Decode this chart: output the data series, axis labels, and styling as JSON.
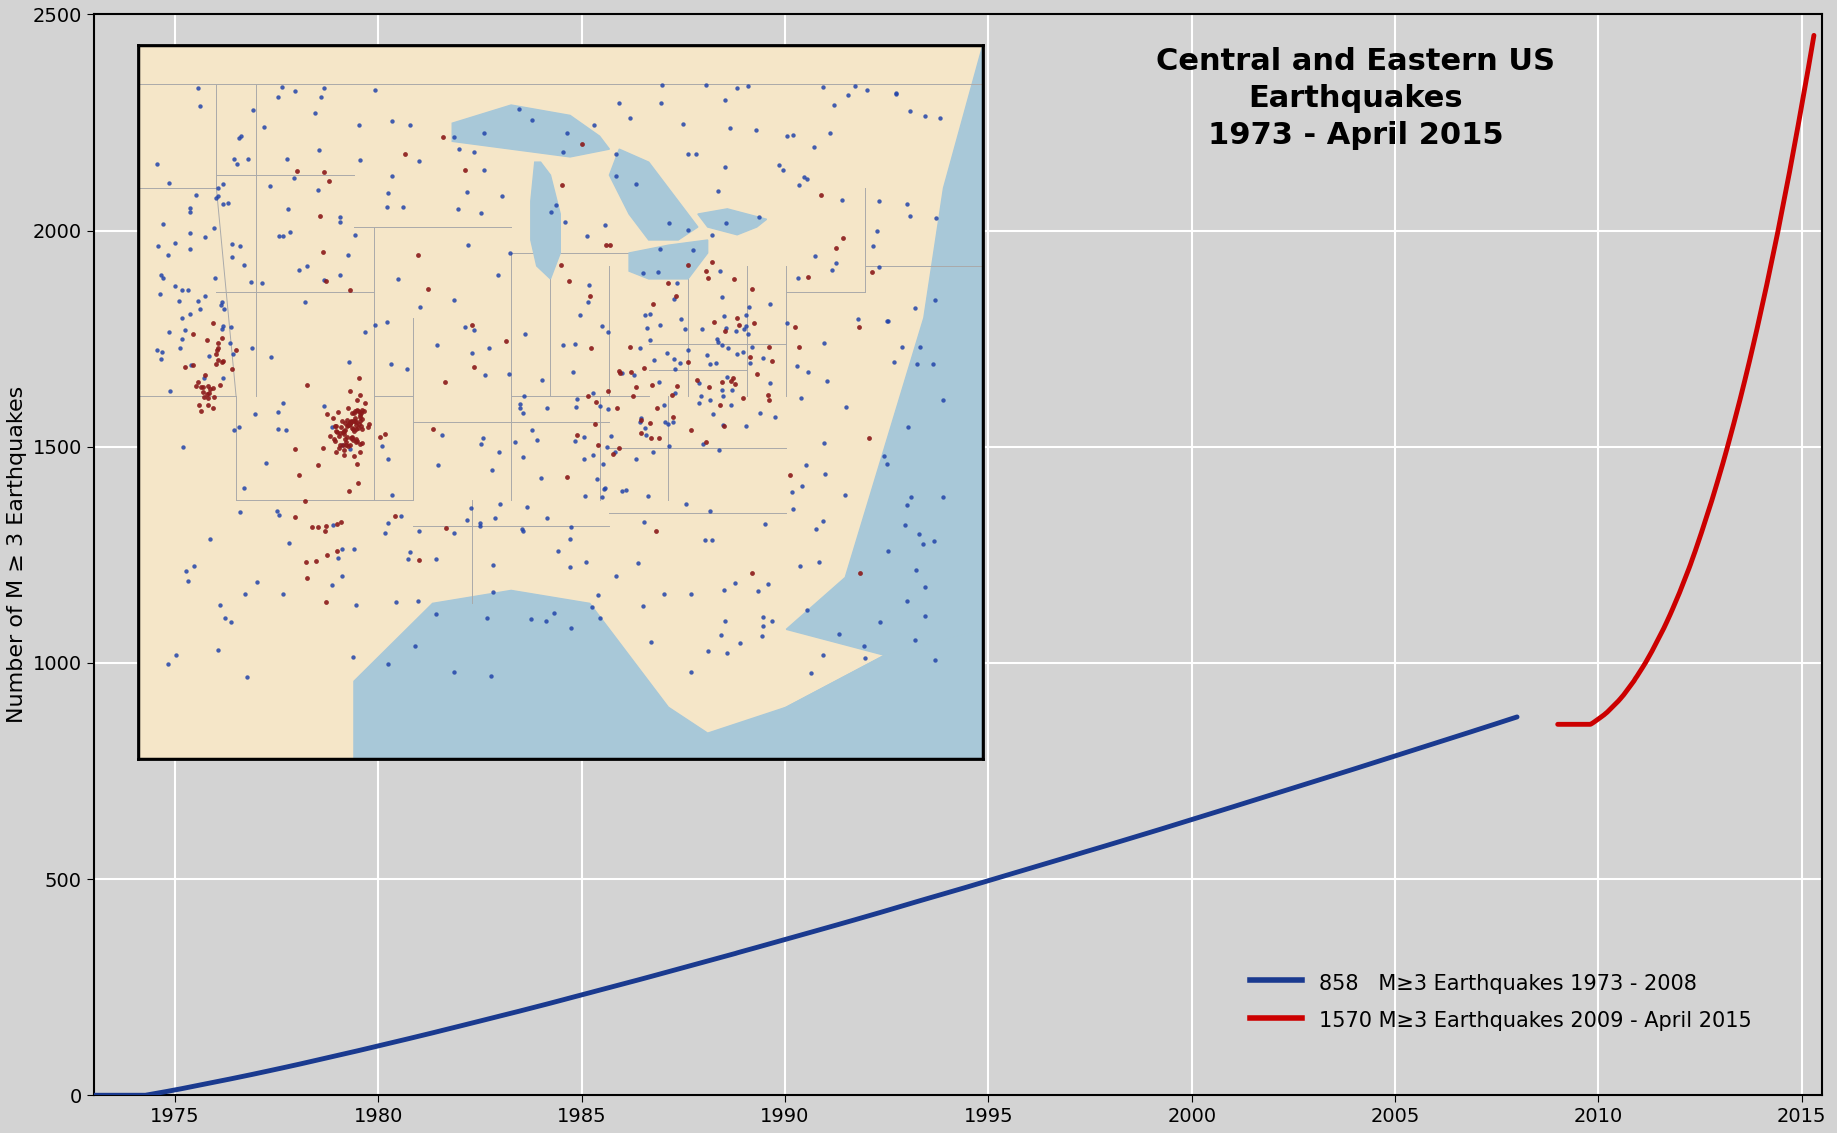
{
  "title": "Central and Eastern US\nEarthquakes\n1973 - April 2015",
  "ylabel": "Number of M ≥ 3 Earthquakes",
  "xlim": [
    1973.0,
    2015.5
  ],
  "ylim": [
    0,
    2500
  ],
  "yticks": [
    0,
    500,
    1000,
    1500,
    2000,
    2500
  ],
  "xticks": [
    1975,
    1980,
    1985,
    1990,
    1995,
    2000,
    2005,
    2010,
    2015
  ],
  "blue_total": 858,
  "red_total": 1570,
  "blue_start_year": 1973,
  "blue_end_year": 2008,
  "red_start_year": 2009,
  "red_end_year": 2015.3,
  "blue_color": "#1a3a8f",
  "red_color": "#cc0000",
  "background_color": "#d3d3d3",
  "grid_color": "#ffffff",
  "land_color": "#f5e6c8",
  "water_color": "#a8c8d8",
  "state_line_color": "#aaaaaa",
  "map_border_color": "#000000",
  "legend_blue_label": "858   M≥3 Earthquakes 1973 - 2008",
  "legend_red_label": "1570 M≥3 Earthquakes 2009 - April 2015",
  "title_fontsize": 22,
  "axis_label_fontsize": 16,
  "tick_fontsize": 14,
  "legend_fontsize": 15,
  "map_xlim": [
    -108,
    -65
  ],
  "map_ylim": [
    23,
    50
  ],
  "blue_dot_color": "#2244aa",
  "red_dot_color": "#8b1a1a",
  "dot_size_blue": 10,
  "dot_size_red": 12
}
